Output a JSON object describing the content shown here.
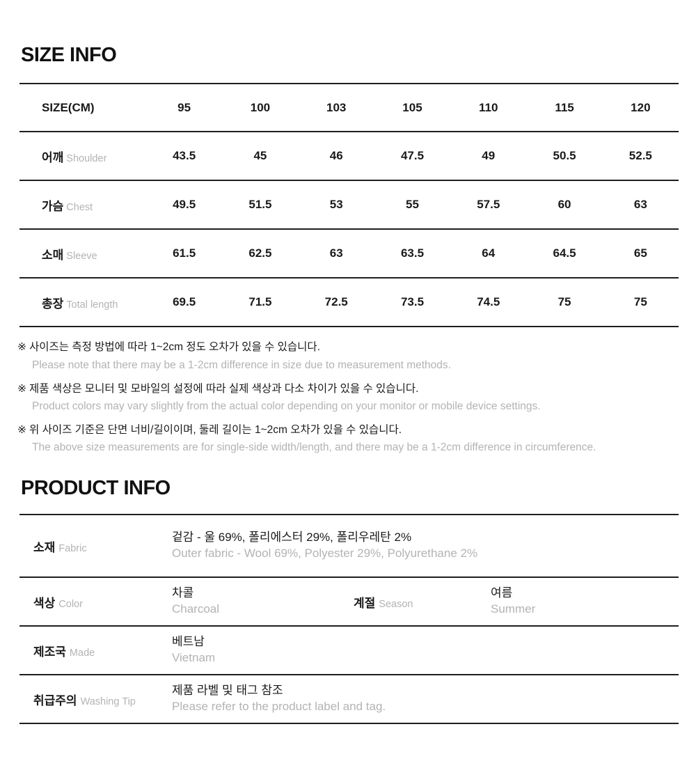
{
  "colors": {
    "text_dark": "#1a1a1a",
    "text_gray": "#b3b3b3",
    "line": "#1e1e1e"
  },
  "size_info": {
    "title": "SIZE INFO",
    "table": {
      "header": [
        "SIZE(CM)",
        "95",
        "100",
        "103",
        "105",
        "110",
        "115",
        "120"
      ],
      "rows": [
        {
          "label_kr": "어깨",
          "label_en": "Shoulder",
          "values": [
            "43.5",
            "45",
            "46",
            "47.5",
            "49",
            "50.5",
            "52.5"
          ]
        },
        {
          "label_kr": "가슴",
          "label_en": "Chest",
          "values": [
            "49.5",
            "51.5",
            "53",
            "55",
            "57.5",
            "60",
            "63"
          ]
        },
        {
          "label_kr": "소매",
          "label_en": "Sleeve",
          "values": [
            "61.5",
            "62.5",
            "63",
            "63.5",
            "64",
            "64.5",
            "65"
          ]
        },
        {
          "label_kr": "총장",
          "label_en": "Total length",
          "values": [
            "69.5",
            "71.5",
            "72.5",
            "73.5",
            "74.5",
            "75",
            "75"
          ]
        }
      ]
    },
    "notes": [
      {
        "marker": "※",
        "kr": "사이즈는 측정 방법에 따라 1~2cm 정도 오차가 있을 수 있습니다.",
        "en": "Please note that there may be a 1-2cm difference in size due to measurement methods."
      },
      {
        "marker": "※",
        "kr": "제품 색상은 모니터 및 모바일의 설정에 따라 실제 색상과 다소 차이가 있을 수 있습니다.",
        "en": "Product colors may vary slightly from the actual color depending on your monitor or mobile device settings."
      },
      {
        "marker": "※",
        "kr": "위 사이즈 기준은 단면 너비/길이이며, 둘레 길이는 1~2cm 오차가 있을 수 있습니다.",
        "en": "The above size measurements are for single-side width/length, and there may be a 1-2cm difference in circumference."
      }
    ]
  },
  "product_info": {
    "title": "PRODUCT INFO",
    "fabric": {
      "label_kr": "소재",
      "label_en": "Fabric",
      "value_kr": "겉감 - 울 69%, 폴리에스터 29%, 폴리우레탄 2%",
      "value_en": "Outer fabric - Wool 69%, Polyester 29%, Polyurethane 2%"
    },
    "color": {
      "label_kr": "색상",
      "label_en": "Color",
      "value_kr": "차콜",
      "value_en": "Charcoal"
    },
    "season": {
      "label_kr": "계절",
      "label_en": "Season",
      "value_kr": "여름",
      "value_en": "Summer"
    },
    "made": {
      "label_kr": "제조국",
      "label_en": "Made",
      "value_kr": "베트남",
      "value_en": "Vietnam"
    },
    "washing": {
      "label_kr": "취급주의",
      "label_en": "Washing Tip",
      "value_kr": "제품 라벨 및 태그 참조",
      "value_en": "Please refer to the product label and tag."
    }
  }
}
